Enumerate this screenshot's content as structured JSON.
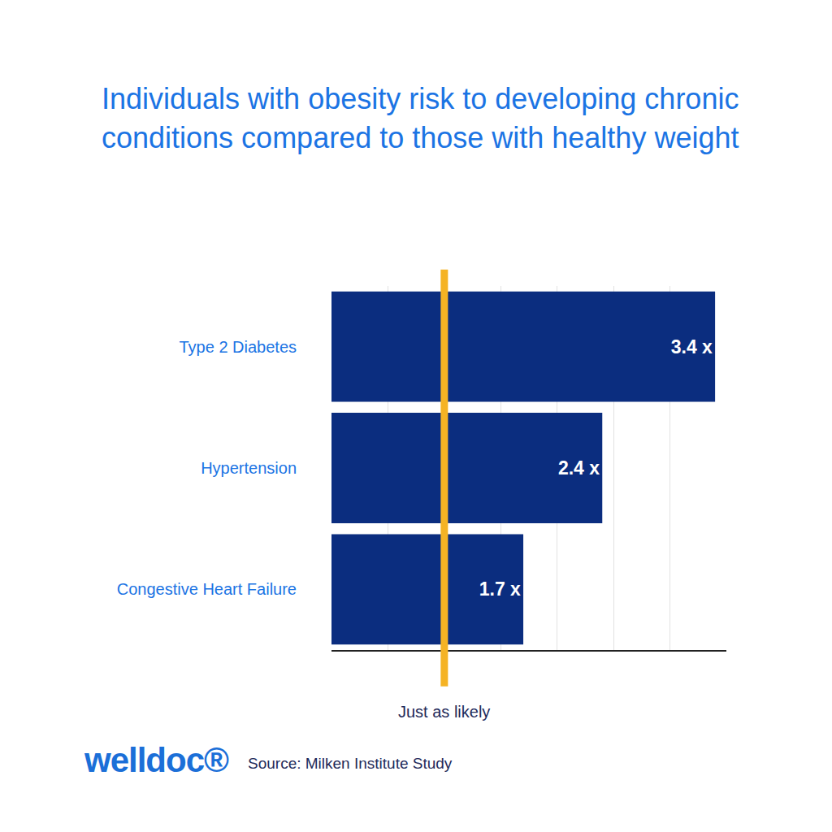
{
  "chart_data": {
    "type": "bar",
    "orientation": "horizontal",
    "title": "Individuals with obesity risk to developing chronic conditions compared to those with healthy weight",
    "categories": [
      "Type 2 Diabetes",
      "Hypertension",
      "Congestive Heart Failure"
    ],
    "values": [
      3.4,
      2.4,
      1.7
    ],
    "value_labels": [
      "3.4 x",
      "2.4 x",
      "1.7 x"
    ],
    "data_labels": true,
    "color": "#0b2d7f",
    "xlim": [
      0,
      3.5
    ],
    "xticks": [
      0,
      0.5,
      1,
      1.5,
      2,
      2.5,
      3,
      3.5
    ],
    "tick_labels": "y",
    "grid": true,
    "annotations": [
      {
        "x": 1,
        "text": "Just as likely"
      }
    ],
    "logo": "welldoc®",
    "source": "Source: Milken Institute Study"
  }
}
